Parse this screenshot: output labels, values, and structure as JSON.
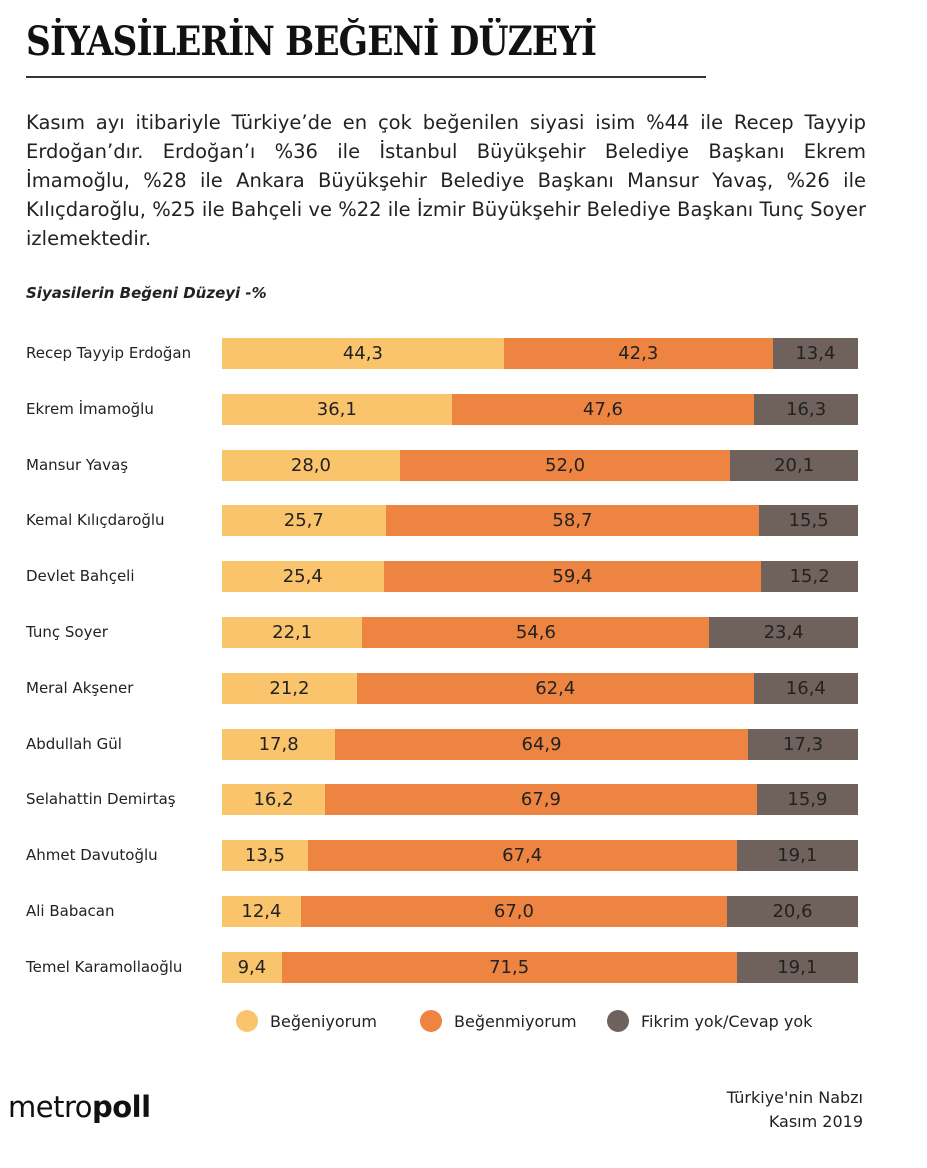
{
  "header": {
    "title": "SİYASİLERİN BEĞENİ DÜZEYİ",
    "intro": "Kasım ayı itibariyle Türkiye’de en çok beğenilen siyasi isim %44 ile Recep Tayyip Erdoğan’dır. Erdoğan’ı %36 ile İstanbul Büyükşehir Belediye Başkanı Ekrem İmamoğlu, %28 ile Ankara Büyükşehir Belediye Başkanı Mansur Yavaş, %26 ile Kılıçdaroğlu, %25 ile Bahçeli ve %22 ile İzmir Büyükşehir Belediye Başkanı Tunç Soyer izlemektedir."
  },
  "chart_data": {
    "type": "bar",
    "orientation": "horizontal",
    "stacked": true,
    "normalized": true,
    "title": "Siyasilerin Beğeni Düzeyi -%",
    "categories": [
      "Recep Tayyip Erdoğan",
      "Ekrem İmamoğlu",
      "Mansur Yavaş",
      "Kemal Kılıçdaroğlu",
      "Devlet Bahçeli",
      "Tunç Soyer",
      "Meral Akşener",
      "Abdullah Gül",
      "Selahattin Demirtaş",
      "Ahmet Davutoğlu",
      "Ali Babacan",
      "Temel Karamollaoğlu"
    ],
    "series": [
      {
        "name": "Beğeniyorum",
        "color": "#F9C46B",
        "values": [
          44.3,
          36.1,
          28.0,
          25.7,
          25.4,
          22.1,
          21.2,
          17.8,
          16.2,
          13.5,
          12.4,
          9.4
        ],
        "labels": [
          "44,3",
          "36,1",
          "28,0",
          "25,7",
          "25,4",
          "22,1",
          "21,2",
          "17,8",
          "16,2",
          "13,5",
          "12,4",
          "9,4"
        ]
      },
      {
        "name": "Beğenmiyorum",
        "color": "#EE8441",
        "values": [
          42.3,
          47.6,
          52.0,
          58.7,
          59.4,
          54.6,
          62.4,
          64.9,
          67.9,
          67.4,
          67.0,
          71.5
        ],
        "labels": [
          "42,3",
          "47,6",
          "52,0",
          "58,7",
          "59,4",
          "54,6",
          "62,4",
          "64,9",
          "67,9",
          "67,4",
          "67,0",
          "71,5"
        ]
      },
      {
        "name": "Fikrim yok/Cevap yok",
        "color": "#6F615C",
        "values": [
          13.4,
          16.3,
          20.1,
          15.5,
          15.2,
          23.4,
          16.4,
          17.3,
          15.9,
          19.1,
          20.6,
          19.1
        ],
        "labels": [
          "13,4",
          "16,3",
          "20,1",
          "15,5",
          "15,2",
          "23,4",
          "16,4",
          "17,3",
          "15,9",
          "19,1",
          "20,6",
          "19,1"
        ]
      }
    ],
    "legend_position": "bottom",
    "grid": false
  },
  "footer": {
    "logo": "metropoll",
    "logo_light": "metro",
    "logo_bold": "poll",
    "source_line1": "Türkiye'nin Nabzı",
    "source_line2": "Kasım 2019"
  }
}
